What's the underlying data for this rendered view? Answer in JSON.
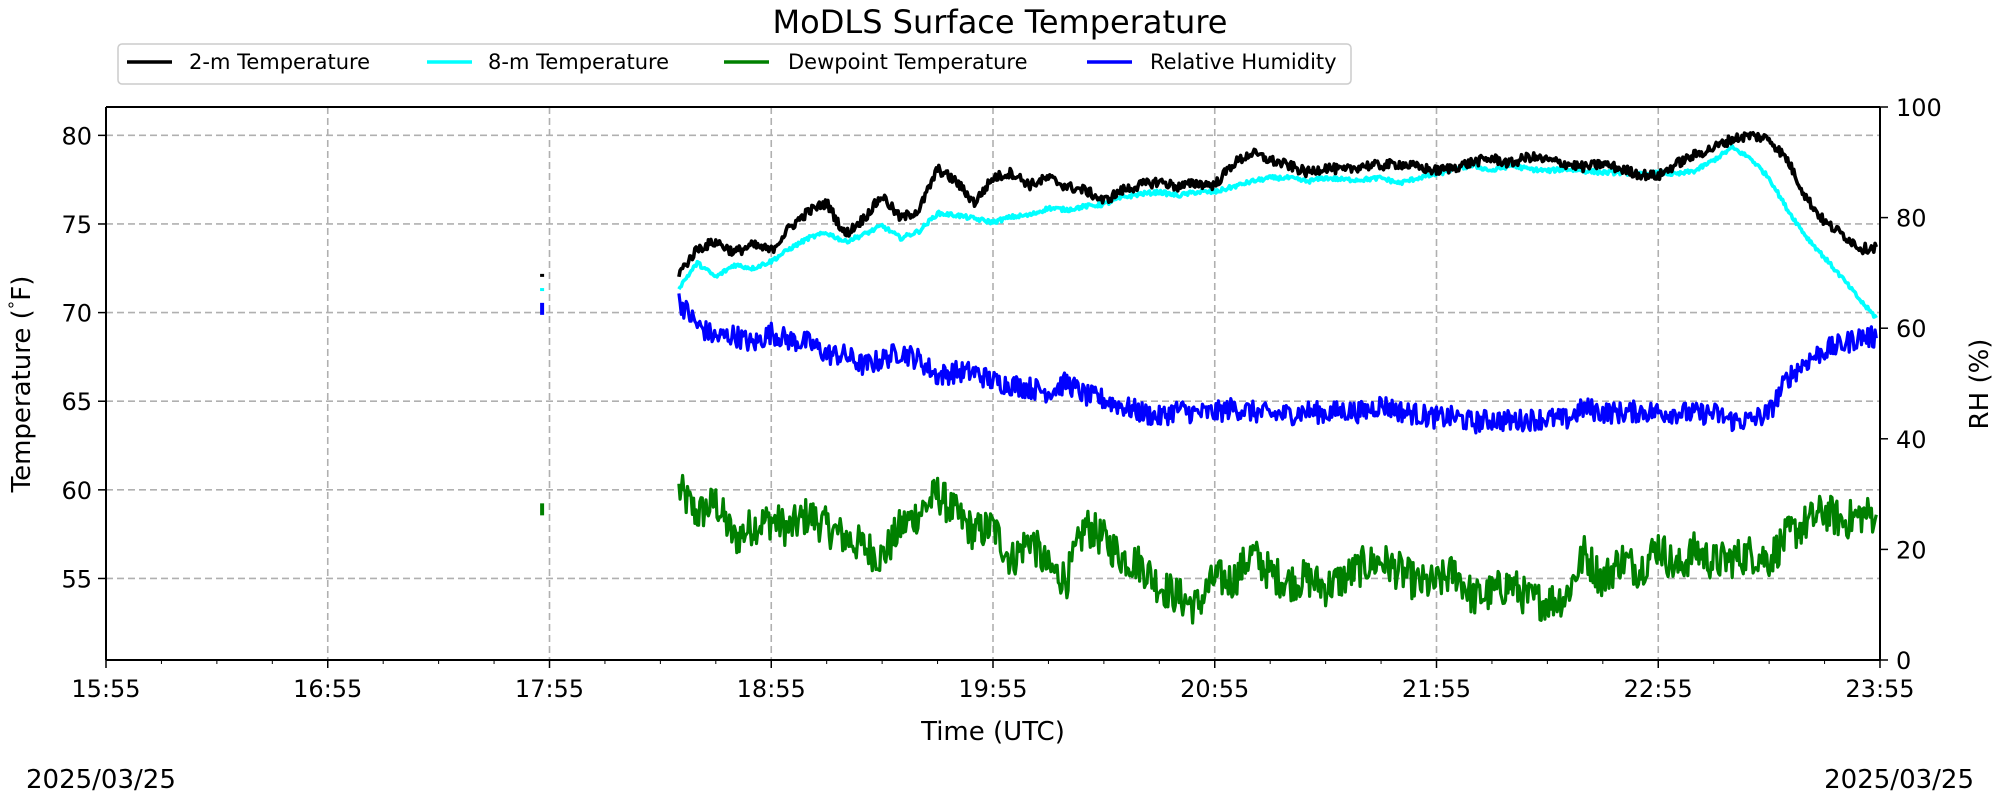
{
  "chart_data": {
    "type": "line",
    "title": "MoDLS Surface Temperature",
    "xlabel": "Time (UTC)",
    "ylabel": "Temperature ($^\\circ$F)",
    "ylabel_display": "Temperature (",
    "ylabel_degree": "°",
    "ylabel_unit_tail": "F)",
    "y2label": "RH (%)",
    "date_left": "2025/03/25",
    "date_right": "2025/03/25",
    "x_ticks": [
      "15:55",
      "16:55",
      "17:55",
      "18:55",
      "19:55",
      "20:55",
      "21:55",
      "22:55",
      "23:55"
    ],
    "x_range_utc": [
      "15:55",
      "23:55"
    ],
    "y_ticks": [
      55,
      60,
      65,
      70,
      75,
      80
    ],
    "ylim": [
      50.4,
      81.6
    ],
    "y2_ticks": [
      0,
      20,
      40,
      60,
      80,
      100
    ],
    "y2lim": [
      0,
      100
    ],
    "grid": true,
    "legend_position": "top-left (above plot)",
    "series": [
      {
        "name": "2-m Temperature",
        "axis": "left",
        "color": "#000000",
        "isolated_point": {
          "t": "17:53",
          "v": 72.1
        },
        "points": [
          [
            "18:30",
            72.2
          ],
          [
            "18:35",
            73.6
          ],
          [
            "18:40",
            74.0
          ],
          [
            "18:45",
            73.4
          ],
          [
            "18:50",
            73.8
          ],
          [
            "18:55",
            73.5
          ],
          [
            "19:00",
            74.8
          ],
          [
            "19:05",
            75.7
          ],
          [
            "19:10",
            76.2
          ],
          [
            "19:15",
            74.4
          ],
          [
            "19:20",
            75.3
          ],
          [
            "19:25",
            76.6
          ],
          [
            "19:30",
            75.3
          ],
          [
            "19:35",
            75.8
          ],
          [
            "19:40",
            78.1
          ],
          [
            "19:45",
            77.4
          ],
          [
            "19:50",
            76.2
          ],
          [
            "19:55",
            77.6
          ],
          [
            "20:00",
            77.9
          ],
          [
            "20:05",
            77.2
          ],
          [
            "20:10",
            77.6
          ],
          [
            "20:15",
            77.1
          ],
          [
            "20:20",
            76.9
          ],
          [
            "20:25",
            76.3
          ],
          [
            "20:30",
            76.9
          ],
          [
            "20:35",
            77.2
          ],
          [
            "20:40",
            77.4
          ],
          [
            "20:45",
            77.1
          ],
          [
            "20:50",
            77.3
          ],
          [
            "20:55",
            77.2
          ],
          [
            "21:00",
            78.4
          ],
          [
            "21:05",
            79.0
          ],
          [
            "21:10",
            78.6
          ],
          [
            "21:15",
            78.3
          ],
          [
            "21:20",
            77.9
          ],
          [
            "21:25",
            78.2
          ],
          [
            "21:30",
            78.0
          ],
          [
            "21:35",
            78.3
          ],
          [
            "21:40",
            78.3
          ],
          [
            "21:45",
            78.4
          ],
          [
            "21:50",
            78.2
          ],
          [
            "21:55",
            78.0
          ],
          [
            "22:00",
            78.2
          ],
          [
            "22:05",
            78.5
          ],
          [
            "22:10",
            78.7
          ],
          [
            "22:15",
            78.4
          ],
          [
            "22:20",
            78.8
          ],
          [
            "22:25",
            78.6
          ],
          [
            "22:30",
            78.4
          ],
          [
            "22:35",
            78.2
          ],
          [
            "22:40",
            78.4
          ],
          [
            "22:45",
            78.1
          ],
          [
            "22:50",
            77.8
          ],
          [
            "22:55",
            77.7
          ],
          [
            "23:00",
            78.4
          ],
          [
            "23:05",
            78.9
          ],
          [
            "23:10",
            79.3
          ],
          [
            "23:15",
            79.8
          ],
          [
            "23:20",
            80.0
          ],
          [
            "23:25",
            79.8
          ],
          [
            "23:30",
            78.6
          ],
          [
            "23:35",
            76.5
          ],
          [
            "23:40",
            75.1
          ],
          [
            "23:45",
            74.4
          ],
          [
            "23:50",
            73.6
          ],
          [
            "23:54",
            73.7
          ]
        ]
      },
      {
        "name": "8-m Temperature",
        "axis": "left",
        "color": "#00ffff",
        "isolated_point": {
          "t": "17:53",
          "v": 71.3
        },
        "points": [
          [
            "18:30",
            71.4
          ],
          [
            "18:35",
            72.8
          ],
          [
            "18:40",
            72.0
          ],
          [
            "18:45",
            72.7
          ],
          [
            "18:50",
            72.5
          ],
          [
            "18:55",
            72.9
          ],
          [
            "19:00",
            73.6
          ],
          [
            "19:05",
            74.2
          ],
          [
            "19:10",
            74.5
          ],
          [
            "19:15",
            74.0
          ],
          [
            "19:20",
            74.4
          ],
          [
            "19:25",
            74.9
          ],
          [
            "19:30",
            74.2
          ],
          [
            "19:35",
            74.6
          ],
          [
            "19:40",
            75.6
          ],
          [
            "19:45",
            75.5
          ],
          [
            "19:50",
            75.3
          ],
          [
            "19:55",
            75.1
          ],
          [
            "20:00",
            75.4
          ],
          [
            "20:05",
            75.5
          ],
          [
            "20:10",
            75.9
          ],
          [
            "20:15",
            75.8
          ],
          [
            "20:20",
            76.0
          ],
          [
            "20:25",
            76.1
          ],
          [
            "20:30",
            76.5
          ],
          [
            "20:35",
            76.7
          ],
          [
            "20:40",
            76.8
          ],
          [
            "20:45",
            76.6
          ],
          [
            "20:50",
            76.8
          ],
          [
            "20:55",
            76.8
          ],
          [
            "21:00",
            77.1
          ],
          [
            "21:05",
            77.4
          ],
          [
            "21:10",
            77.6
          ],
          [
            "21:15",
            77.6
          ],
          [
            "21:20",
            77.4
          ],
          [
            "21:25",
            77.6
          ],
          [
            "21:30",
            77.5
          ],
          [
            "21:35",
            77.5
          ],
          [
            "21:40",
            77.6
          ],
          [
            "21:45",
            77.3
          ],
          [
            "21:50",
            77.6
          ],
          [
            "21:55",
            77.8
          ],
          [
            "22:00",
            78.1
          ],
          [
            "22:05",
            78.3
          ],
          [
            "22:10",
            78.0
          ],
          [
            "22:15",
            78.3
          ],
          [
            "22:20",
            78.1
          ],
          [
            "22:25",
            78.0
          ],
          [
            "22:30",
            78.1
          ],
          [
            "22:35",
            78.0
          ],
          [
            "22:40",
            77.9
          ],
          [
            "22:45",
            77.9
          ],
          [
            "22:50",
            77.8
          ],
          [
            "22:55",
            77.9
          ],
          [
            "23:00",
            77.8
          ],
          [
            "23:05",
            78.0
          ],
          [
            "23:10",
            78.6
          ],
          [
            "23:15",
            79.3
          ],
          [
            "23:20",
            78.7
          ],
          [
            "23:25",
            77.6
          ],
          [
            "23:30",
            75.8
          ],
          [
            "23:35",
            74.3
          ],
          [
            "23:40",
            73.1
          ],
          [
            "23:45",
            71.9
          ],
          [
            "23:50",
            70.6
          ],
          [
            "23:54",
            69.7
          ]
        ]
      },
      {
        "name": "Dewpoint Temperature",
        "axis": "left",
        "color": "#008000",
        "isolated_point": {
          "t": "17:53",
          "v": 58.9
        },
        "points": [
          [
            "18:30",
            60.0
          ],
          [
            "18:35",
            58.6
          ],
          [
            "18:40",
            59.3
          ],
          [
            "18:45",
            57.2
          ],
          [
            "18:50",
            58.0
          ],
          [
            "18:55",
            58.3
          ],
          [
            "19:00",
            57.8
          ],
          [
            "19:05",
            58.6
          ],
          [
            "19:10",
            57.9
          ],
          [
            "19:15",
            57.3
          ],
          [
            "19:20",
            56.8
          ],
          [
            "19:25",
            56.2
          ],
          [
            "19:30",
            57.9
          ],
          [
            "19:35",
            58.7
          ],
          [
            "19:40",
            59.8
          ],
          [
            "19:45",
            58.6
          ],
          [
            "19:50",
            57.6
          ],
          [
            "19:55",
            57.9
          ],
          [
            "20:00",
            56.0
          ],
          [
            "20:05",
            57.3
          ],
          [
            "20:10",
            55.5
          ],
          [
            "20:15",
            55.0
          ],
          [
            "20:20",
            58.0
          ],
          [
            "20:25",
            57.2
          ],
          [
            "20:30",
            56.2
          ],
          [
            "20:35",
            55.8
          ],
          [
            "20:40",
            54.6
          ],
          [
            "20:45",
            54.0
          ],
          [
            "20:50",
            53.4
          ],
          [
            "20:55",
            55.0
          ],
          [
            "21:00",
            54.9
          ],
          [
            "21:05",
            56.4
          ],
          [
            "21:10",
            55.3
          ],
          [
            "21:15",
            54.8
          ],
          [
            "21:20",
            55.0
          ],
          [
            "21:25",
            54.5
          ],
          [
            "21:30",
            55.0
          ],
          [
            "21:35",
            55.7
          ],
          [
            "21:40",
            56.0
          ],
          [
            "21:45",
            55.4
          ],
          [
            "21:50",
            54.7
          ],
          [
            "21:55",
            54.7
          ],
          [
            "22:00",
            55.4
          ],
          [
            "22:05",
            53.9
          ],
          [
            "22:10",
            54.2
          ],
          [
            "22:15",
            54.7
          ],
          [
            "22:20",
            53.8
          ],
          [
            "22:25",
            53.7
          ],
          [
            "22:30",
            54.0
          ],
          [
            "22:35",
            56.4
          ],
          [
            "22:40",
            54.9
          ],
          [
            "22:45",
            56.1
          ],
          [
            "22:50",
            55.5
          ],
          [
            "22:55",
            56.9
          ],
          [
            "23:00",
            55.5
          ],
          [
            "23:05",
            56.6
          ],
          [
            "23:10",
            55.9
          ],
          [
            "23:15",
            56.1
          ],
          [
            "23:20",
            56.4
          ],
          [
            "23:25",
            56.1
          ],
          [
            "23:30",
            57.4
          ],
          [
            "23:35",
            58.1
          ],
          [
            "23:40",
            58.8
          ],
          [
            "23:45",
            58.2
          ],
          [
            "23:50",
            58.6
          ],
          [
            "23:54",
            58.6
          ]
        ]
      },
      {
        "name": "Relative Humidity",
        "axis": "right",
        "color": "#0000ff",
        "isolated_point": {
          "t": "17:53",
          "v": 63.5
        },
        "points": [
          [
            "18:30",
            65.0
          ],
          [
            "18:35",
            60.5
          ],
          [
            "18:40",
            58.3
          ],
          [
            "18:45",
            58.8
          ],
          [
            "18:50",
            57.1
          ],
          [
            "18:55",
            59.2
          ],
          [
            "19:00",
            57.8
          ],
          [
            "19:05",
            57.4
          ],
          [
            "19:10",
            55.3
          ],
          [
            "19:15",
            55.1
          ],
          [
            "19:20",
            53.2
          ],
          [
            "19:25",
            54.3
          ],
          [
            "19:30",
            55.8
          ],
          [
            "19:35",
            54.3
          ],
          [
            "19:40",
            51.4
          ],
          [
            "19:45",
            52.1
          ],
          [
            "19:50",
            52.0
          ],
          [
            "19:55",
            50.4
          ],
          [
            "20:00",
            49.8
          ],
          [
            "20:05",
            49.2
          ],
          [
            "20:10",
            48.5
          ],
          [
            "20:15",
            50.2
          ],
          [
            "20:20",
            47.8
          ],
          [
            "20:25",
            47.1
          ],
          [
            "20:30",
            45.9
          ],
          [
            "20:35",
            44.8
          ],
          [
            "20:40",
            43.9
          ],
          [
            "20:45",
            45.3
          ],
          [
            "20:50",
            44.6
          ],
          [
            "20:55",
            44.7
          ],
          [
            "21:00",
            45.6
          ],
          [
            "21:05",
            44.9
          ],
          [
            "21:10",
            44.4
          ],
          [
            "21:15",
            44.4
          ],
          [
            "21:20",
            45.0
          ],
          [
            "21:25",
            44.6
          ],
          [
            "21:30",
            45.1
          ],
          [
            "21:35",
            44.8
          ],
          [
            "21:40",
            46.2
          ],
          [
            "21:45",
            45.0
          ],
          [
            "21:50",
            44.4
          ],
          [
            "21:55",
            43.8
          ],
          [
            "22:00",
            43.9
          ],
          [
            "22:05",
            42.9
          ],
          [
            "22:10",
            43.5
          ],
          [
            "22:15",
            43.2
          ],
          [
            "22:20",
            43.5
          ],
          [
            "22:25",
            43.7
          ],
          [
            "22:30",
            43.4
          ],
          [
            "22:35",
            45.6
          ],
          [
            "22:40",
            44.8
          ],
          [
            "22:45",
            44.7
          ],
          [
            "22:50",
            45.0
          ],
          [
            "22:55",
            44.8
          ],
          [
            "23:00",
            44.8
          ],
          [
            "23:05",
            44.5
          ],
          [
            "23:10",
            44.6
          ],
          [
            "23:15",
            43.3
          ],
          [
            "23:20",
            43.3
          ],
          [
            "23:25",
            44.7
          ],
          [
            "23:30",
            51.0
          ],
          [
            "23:35",
            54.0
          ],
          [
            "23:40",
            56.0
          ],
          [
            "23:45",
            57.1
          ],
          [
            "23:50",
            58.5
          ],
          [
            "23:54",
            58.2
          ]
        ]
      }
    ]
  }
}
